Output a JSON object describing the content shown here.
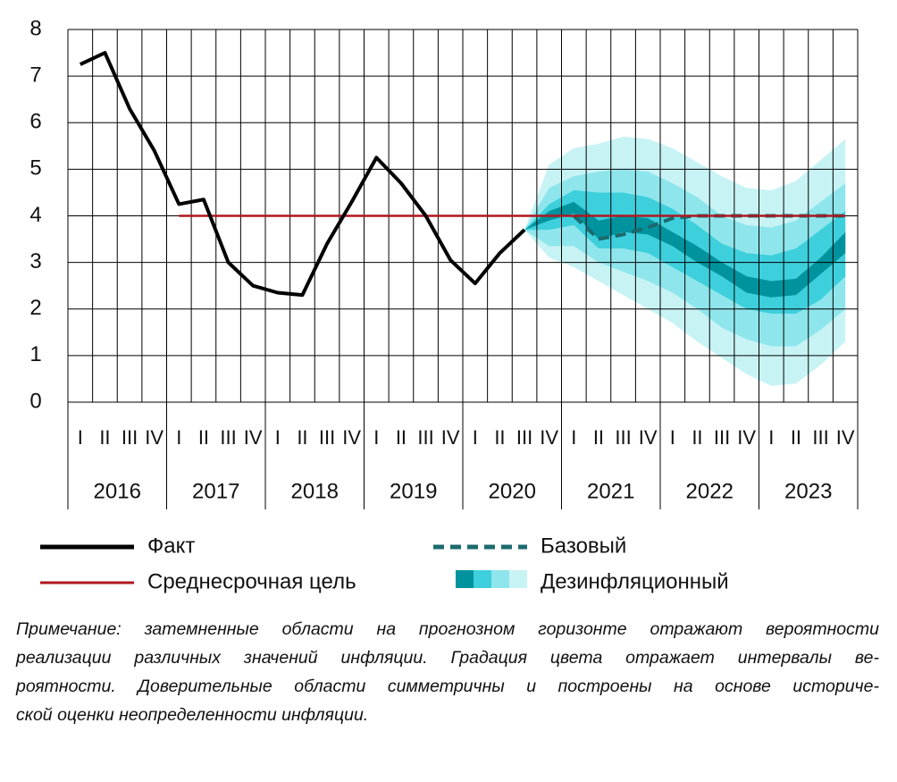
{
  "chart_data": {
    "type": "fan",
    "ylim": [
      0,
      8
    ],
    "yticks": [
      0,
      1,
      2,
      3,
      4,
      5,
      6,
      7,
      8
    ],
    "grid": true,
    "categories": [
      "I",
      "II",
      "III",
      "IV",
      "I",
      "II",
      "III",
      "IV",
      "I",
      "II",
      "III",
      "IV",
      "I",
      "II",
      "III",
      "IV",
      "I",
      "II",
      "III",
      "IV",
      "I",
      "II",
      "III",
      "IV",
      "I",
      "II",
      "III",
      "IV",
      "I",
      "II",
      "III",
      "IV"
    ],
    "years": [
      "2016",
      "2017",
      "2018",
      "2019",
      "2020",
      "2021",
      "2022",
      "2023"
    ],
    "fan": {
      "name": "Дезинфляционный",
      "bands": [
        {
          "color": "#c8f3f5",
          "upper": [
            null,
            null,
            null,
            null,
            null,
            null,
            null,
            null,
            null,
            null,
            null,
            null,
            null,
            null,
            null,
            null,
            null,
            null,
            3.7,
            5.1,
            5.45,
            5.55,
            5.7,
            5.65,
            5.45,
            5.15,
            4.85,
            4.6,
            4.55,
            4.75,
            5.2,
            5.65
          ],
          "lower": [
            null,
            null,
            null,
            null,
            null,
            null,
            null,
            null,
            null,
            null,
            null,
            null,
            null,
            null,
            null,
            null,
            null,
            null,
            3.7,
            3.1,
            2.9,
            2.6,
            2.3,
            2.0,
            1.7,
            1.3,
            0.95,
            0.6,
            0.35,
            0.4,
            0.8,
            1.3
          ]
        },
        {
          "color": "#8ee6ec",
          "upper": [
            null,
            null,
            null,
            null,
            null,
            null,
            null,
            null,
            null,
            null,
            null,
            null,
            null,
            null,
            null,
            null,
            null,
            null,
            3.7,
            4.6,
            4.85,
            4.95,
            5.0,
            4.95,
            4.7,
            4.4,
            4.0,
            3.8,
            3.75,
            3.9,
            4.3,
            4.7
          ],
          "lower": [
            null,
            null,
            null,
            null,
            null,
            null,
            null,
            null,
            null,
            null,
            null,
            null,
            null,
            null,
            null,
            null,
            null,
            null,
            3.7,
            3.35,
            3.35,
            3.0,
            2.8,
            2.6,
            2.35,
            2.0,
            1.6,
            1.35,
            1.2,
            1.2,
            1.55,
            2.0
          ]
        },
        {
          "color": "#3ecfdc",
          "upper": [
            null,
            null,
            null,
            null,
            null,
            null,
            null,
            null,
            null,
            null,
            null,
            null,
            null,
            null,
            null,
            null,
            null,
            null,
            3.7,
            4.25,
            4.55,
            4.5,
            4.5,
            4.4,
            4.15,
            3.8,
            3.4,
            3.2,
            3.15,
            3.3,
            3.7,
            4.1
          ],
          "lower": [
            null,
            null,
            null,
            null,
            null,
            null,
            null,
            null,
            null,
            null,
            null,
            null,
            null,
            null,
            null,
            null,
            null,
            null,
            3.7,
            3.7,
            3.8,
            3.3,
            3.3,
            3.2,
            2.9,
            2.6,
            2.3,
            2.0,
            1.9,
            1.9,
            2.2,
            2.7
          ]
        },
        {
          "color": "#00939e",
          "upper": [
            null,
            null,
            null,
            null,
            null,
            null,
            null,
            null,
            null,
            null,
            null,
            null,
            null,
            null,
            null,
            null,
            null,
            null,
            3.7,
            4.1,
            4.3,
            3.9,
            4.0,
            3.95,
            3.65,
            3.35,
            3.0,
            2.7,
            2.6,
            2.65,
            3.1,
            3.65
          ],
          "lower": [
            null,
            null,
            null,
            null,
            null,
            null,
            null,
            null,
            null,
            null,
            null,
            null,
            null,
            null,
            null,
            null,
            null,
            null,
            3.7,
            3.9,
            4.05,
            3.5,
            3.65,
            3.6,
            3.35,
            3.0,
            2.7,
            2.35,
            2.25,
            2.3,
            2.75,
            3.2
          ]
        }
      ]
    },
    "series": [
      {
        "name": "Факт",
        "color": "#000000",
        "values": [
          7.25,
          7.5,
          6.3,
          5.4,
          4.25,
          4.35,
          3.0,
          2.5,
          2.35,
          2.3,
          3.4,
          4.3,
          5.25,
          4.7,
          4.0,
          3.05,
          2.55,
          3.2,
          3.7,
          null,
          null,
          null,
          null,
          null,
          null,
          null,
          null,
          null,
          null,
          null,
          null,
          null
        ]
      },
      {
        "name": "Среднесрочная цель",
        "color": "#b0161e",
        "values": [
          null,
          null,
          null,
          null,
          4,
          4,
          4,
          4,
          4,
          4,
          4,
          4,
          4,
          4,
          4,
          4,
          4,
          4,
          4,
          4,
          4,
          4,
          4,
          4,
          4,
          4,
          4,
          4,
          4,
          4,
          4,
          4
        ]
      },
      {
        "name": "Базовый",
        "color": "#1b6a6e",
        "dashed": true,
        "values": [
          null,
          null,
          null,
          null,
          null,
          null,
          null,
          null,
          null,
          null,
          null,
          null,
          null,
          null,
          null,
          null,
          null,
          null,
          null,
          null,
          4.0,
          3.5,
          3.6,
          3.75,
          3.95,
          4.0,
          4.0,
          4.0,
          4.0,
          4.0,
          4.0,
          4.0
        ]
      }
    ],
    "note": [
      "Примечание: затемненные области на прогнозном горизонте отражают вероятности",
      "реализации различных значений инфляции. Градация цвета отражает интервалы ве-",
      "роятности. Доверительные области симметричны и построены на основе историче-",
      "ской оценки неопределенности инфляции."
    ]
  }
}
